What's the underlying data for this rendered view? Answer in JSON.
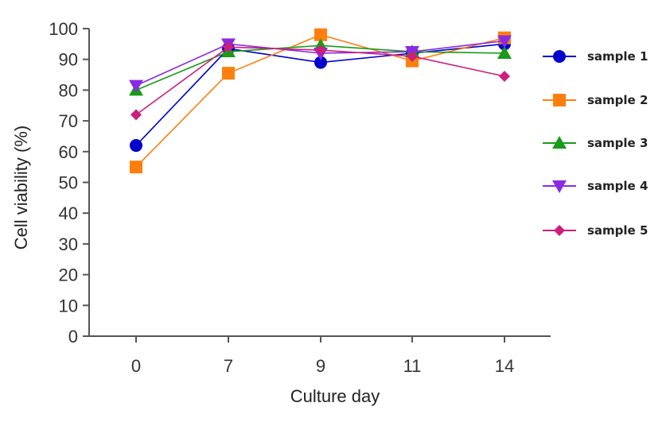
{
  "chart_data": {
    "type": "line",
    "categories": [
      "0",
      "7",
      "9",
      "11",
      "14"
    ],
    "xlabel": "Culture day",
    "ylabel": "Cell viability (%)",
    "ylim": [
      0,
      100
    ],
    "yticks": [
      0,
      10,
      20,
      30,
      40,
      50,
      60,
      70,
      80,
      90,
      100
    ],
    "grid": false,
    "legend_position": "right",
    "series": [
      {
        "name": "sample 1",
        "color": "#0000cc",
        "marker": "circle",
        "values": [
          62,
          93.5,
          89,
          92,
          95
        ]
      },
      {
        "name": "sample 2",
        "color": "#ff7f0e",
        "marker": "square",
        "values": [
          55,
          85.5,
          98,
          89.5,
          97
        ]
      },
      {
        "name": "sample 3",
        "color": "#1a9a1a",
        "marker": "triangle-up",
        "values": [
          80,
          92.5,
          94.5,
          92.5,
          92
        ]
      },
      {
        "name": "sample 4",
        "color": "#8a2be2",
        "marker": "triangle-down",
        "values": [
          81.5,
          95,
          92,
          92.5,
          96
        ]
      },
      {
        "name": "sample 5",
        "color": "#cc1f7a",
        "marker": "diamond",
        "values": [
          72,
          94,
          93,
          91,
          84.5
        ]
      }
    ]
  }
}
